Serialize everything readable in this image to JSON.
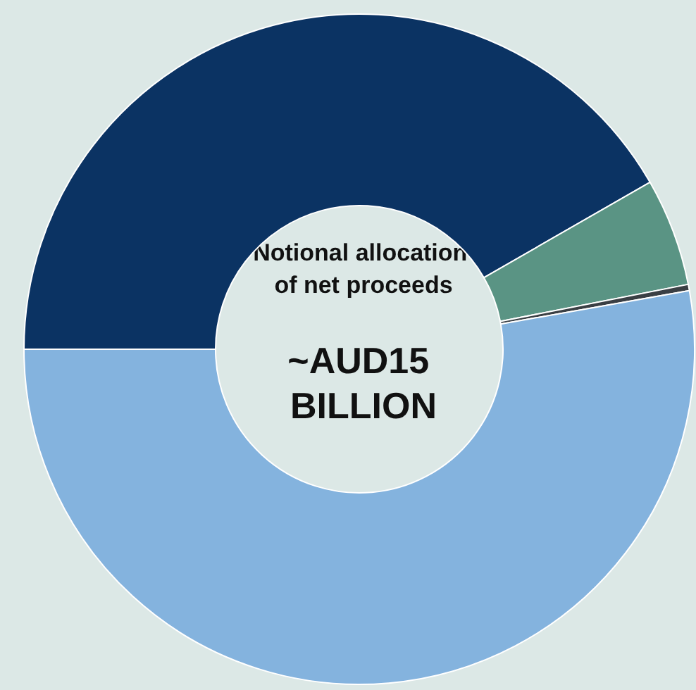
{
  "chart_data": {
    "type": "donut",
    "title": "Notional allocation of net proceeds",
    "subtitle": "~AUD15 BILLION",
    "categories": [
      null,
      null,
      null,
      null
    ],
    "values": [
      41.7,
      5.2,
      0.3,
      52.8
    ],
    "colors": [
      "#0b3363",
      "#5a9484",
      "#3a3f44",
      "#84b3de"
    ]
  }
}
